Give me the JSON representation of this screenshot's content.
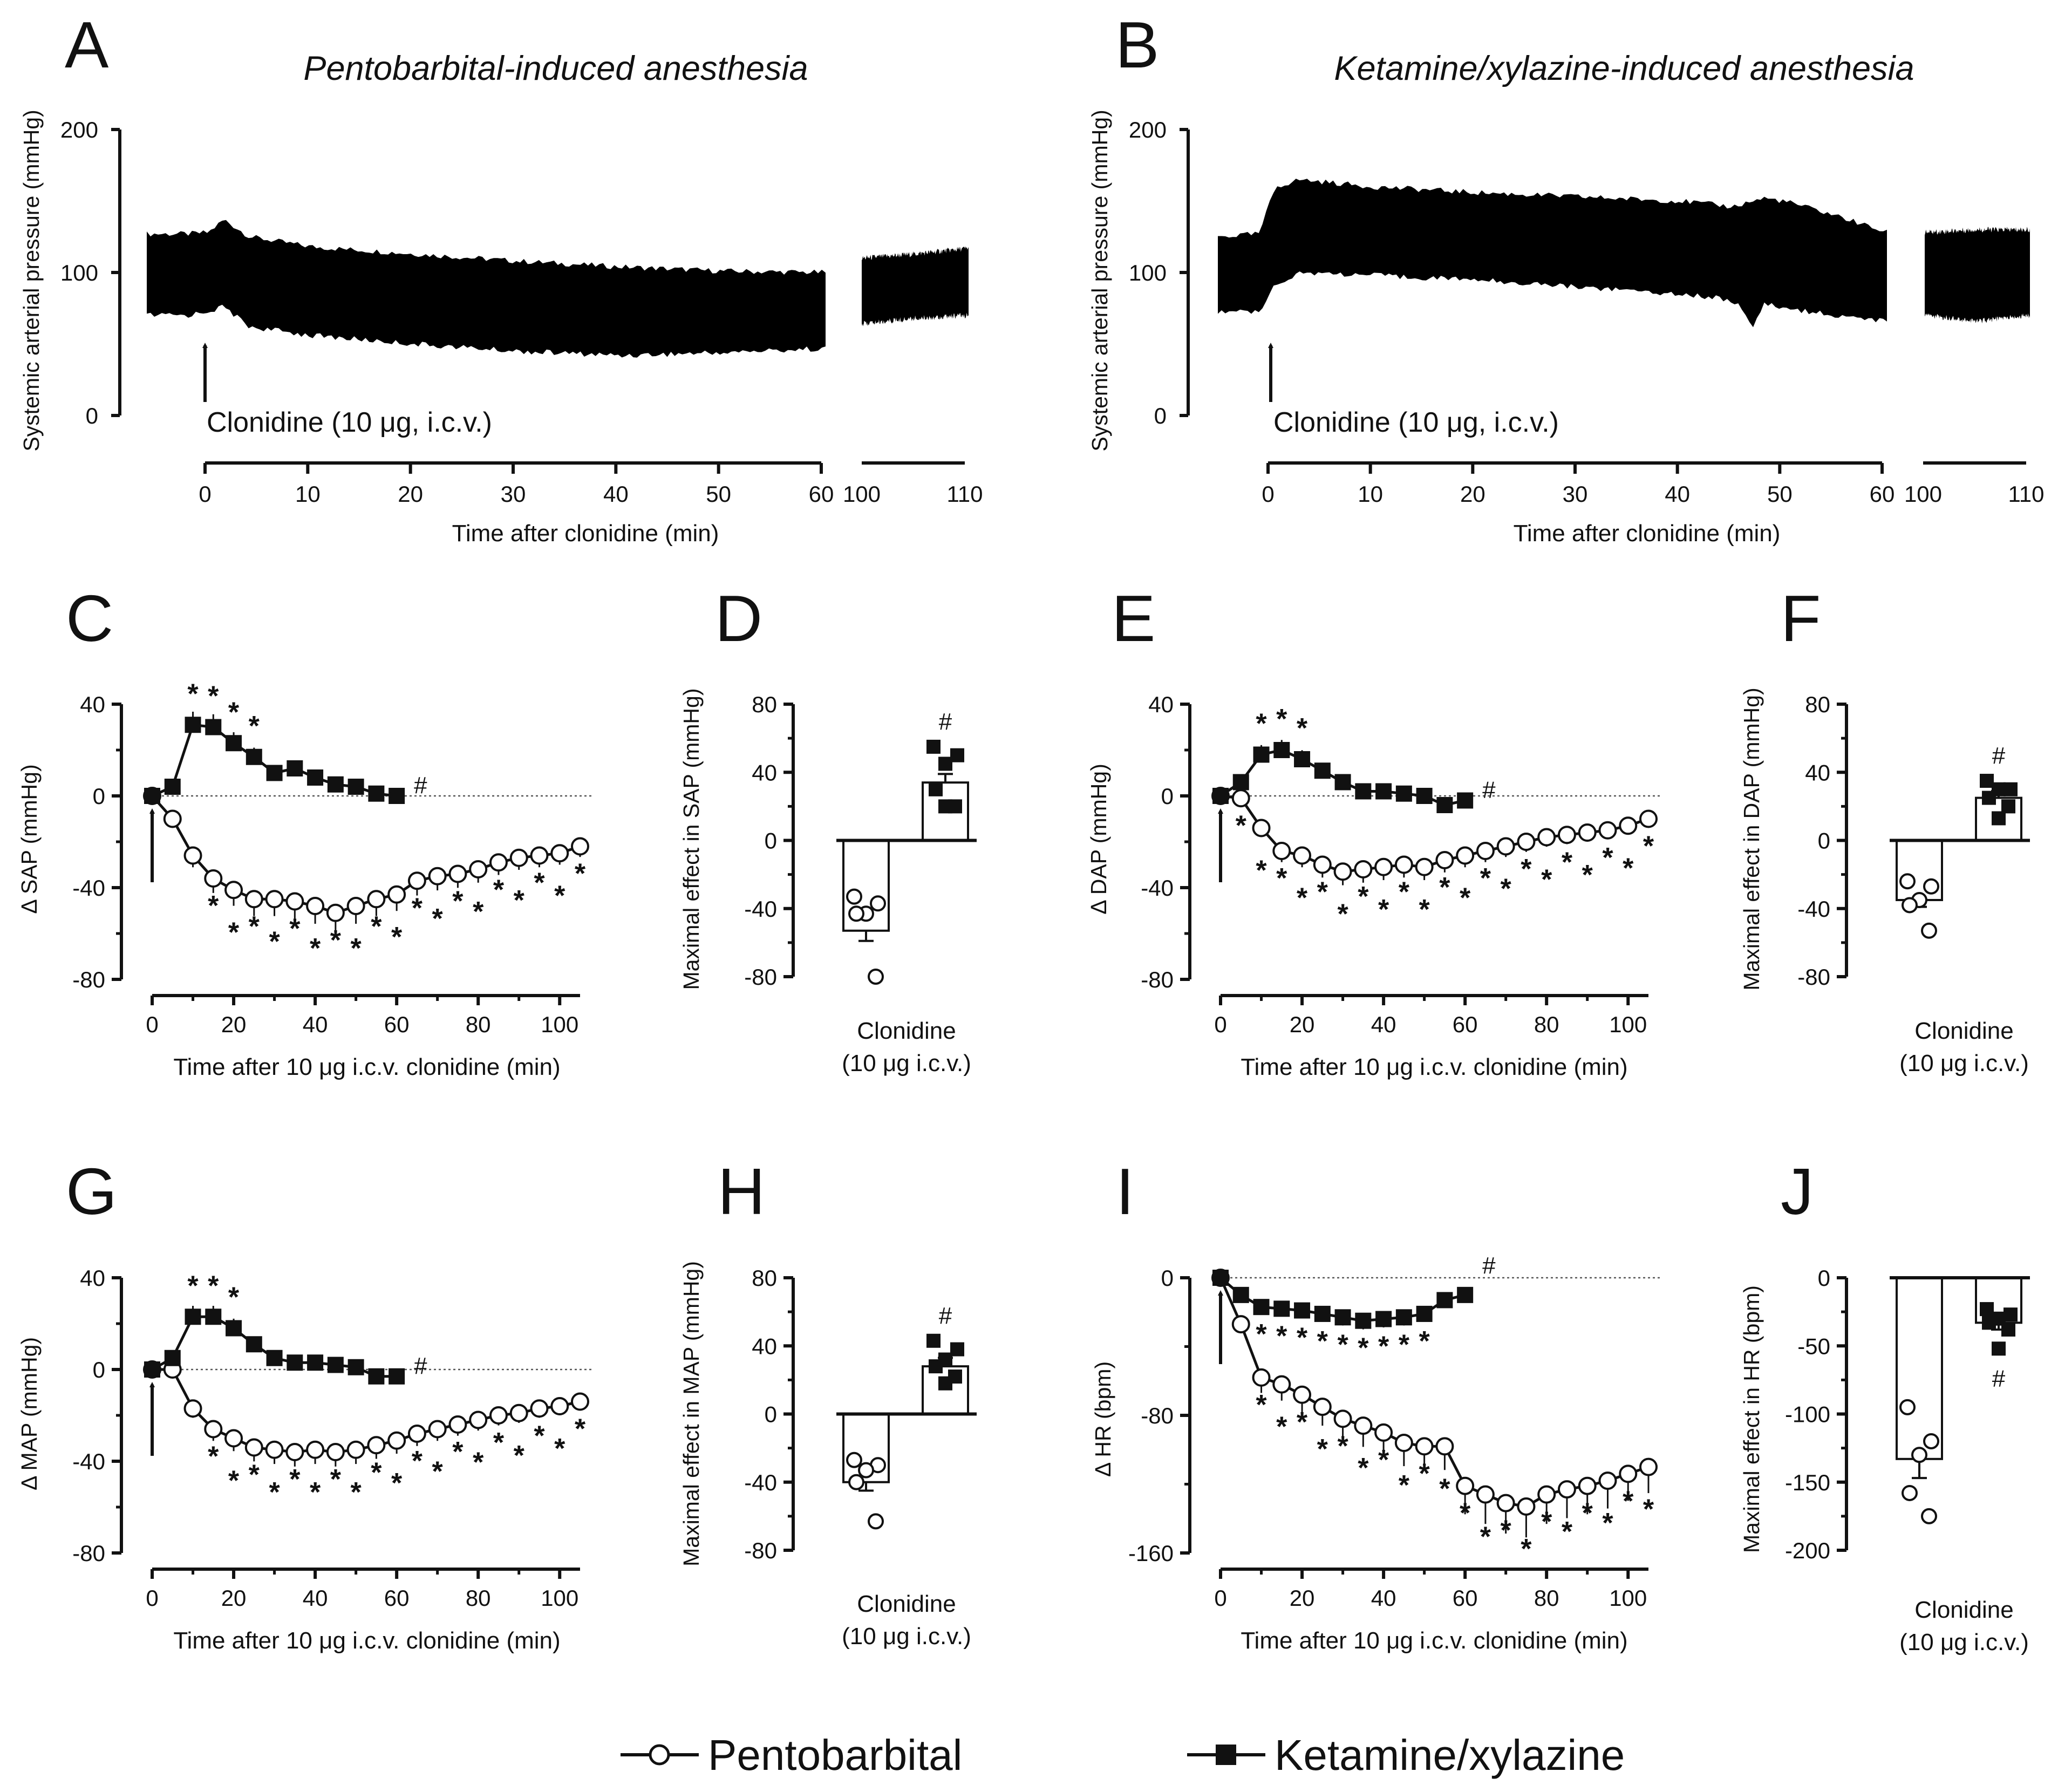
{
  "chart_data": [
    {
      "id": "A",
      "type": "line",
      "panel_letter": "A",
      "title": "Pentobarbital-induced anesthesia",
      "ylabel": "Systemic arterial pressure (mmHg)",
      "xlabel": "Time after clonidine (min)",
      "ylim": [
        0,
        200
      ],
      "yticks": [
        "200",
        "100",
        "0"
      ],
      "xticks": [
        "0",
        "10",
        "20",
        "30",
        "40",
        "50",
        "60"
      ],
      "xticks_break": [
        "100",
        "110"
      ],
      "annotation": "Clonidine (10 μg, i.c.v.)",
      "trace": {
        "systolic": [
          [
            -6,
            127
          ],
          [
            -2,
            127
          ],
          [
            0,
            128
          ],
          [
            1.5,
            137
          ],
          [
            4,
            125
          ],
          [
            10,
            118
          ],
          [
            20,
            113
          ],
          [
            30,
            108
          ],
          [
            40,
            104
          ],
          [
            50,
            101
          ],
          [
            60,
            100
          ]
        ],
        "diastolic": [
          [
            -6,
            70
          ],
          [
            -2,
            70
          ],
          [
            0,
            73
          ],
          [
            1.5,
            76
          ],
          [
            4,
            62
          ],
          [
            10,
            56
          ],
          [
            20,
            50
          ],
          [
            30,
            45
          ],
          [
            40,
            42
          ],
          [
            50,
            44
          ],
          [
            60,
            47
          ]
        ],
        "systolic_late": [
          [
            100,
            110
          ],
          [
            105,
            113
          ],
          [
            110,
            117
          ]
        ],
        "diastolic_late": [
          [
            100,
            64
          ],
          [
            105,
            68
          ],
          [
            110,
            70
          ]
        ]
      }
    },
    {
      "id": "B",
      "type": "line",
      "panel_letter": "B",
      "title": "Ketamine/xylazine-induced anesthesia",
      "ylabel": "Systemic arterial pressure (mmHg)",
      "xlabel": "Time after clonidine (min)",
      "ylim": [
        0,
        200
      ],
      "yticks": [
        "200",
        "100",
        "0"
      ],
      "xticks": [
        "0",
        "10",
        "20",
        "30",
        "40",
        "50",
        "60"
      ],
      "xticks_break": [
        "100",
        "110"
      ],
      "annotation": "Clonidine (10 μg, i.c.v.)",
      "trace": {
        "systolic": [
          [
            -5,
            125
          ],
          [
            -1,
            127
          ],
          [
            0.6,
            160
          ],
          [
            3,
            165
          ],
          [
            10,
            160
          ],
          [
            20,
            156
          ],
          [
            30,
            153
          ],
          [
            40,
            150
          ],
          [
            45,
            146
          ],
          [
            48,
            152
          ],
          [
            50,
            150
          ],
          [
            55,
            140
          ],
          [
            60,
            128
          ]
        ],
        "diastolic": [
          [
            -5,
            72
          ],
          [
            -1,
            73
          ],
          [
            0.6,
            92
          ],
          [
            3,
            100
          ],
          [
            10,
            98
          ],
          [
            20,
            95
          ],
          [
            30,
            90
          ],
          [
            40,
            85
          ],
          [
            44,
            82
          ],
          [
            46,
            75
          ],
          [
            47,
            62
          ],
          [
            48,
            78
          ],
          [
            50,
            75
          ],
          [
            55,
            70
          ],
          [
            60,
            66
          ]
        ],
        "systolic_late": [
          [
            100,
            128
          ],
          [
            105,
            130
          ],
          [
            110,
            130
          ]
        ],
        "diastolic_late": [
          [
            100,
            70
          ],
          [
            105,
            66
          ],
          [
            110,
            70
          ]
        ]
      }
    },
    {
      "id": "C",
      "type": "line",
      "panel_letter": "C",
      "ylabel": "Δ SAP (mmHg)",
      "xlabel": "Time after 10 μg i.c.v. clonidine (min)",
      "ylim": [
        -80,
        40
      ],
      "yticks": [
        "40",
        "0",
        "-40",
        "-80"
      ],
      "xticks": [
        "0",
        "20",
        "40",
        "60",
        "80",
        "100"
      ],
      "series": [
        {
          "name": "Pentobarbital",
          "x": [
            0,
            5,
            10,
            15,
            20,
            25,
            30,
            35,
            40,
            45,
            50,
            55,
            60,
            65,
            70,
            75,
            80,
            85,
            90,
            95,
            100,
            105
          ],
          "y": [
            0,
            -10,
            -26,
            -36,
            -41,
            -45,
            -45,
            -46,
            -48,
            -51,
            -48,
            -45,
            -43,
            -37,
            -35,
            -34,
            -32,
            -29,
            -27,
            -26,
            -25,
            -22
          ]
        },
        {
          "name": "Ketamine/xylazine",
          "x": [
            0,
            5,
            10,
            15,
            20,
            25,
            30,
            35,
            40,
            45,
            50,
            55,
            60
          ],
          "y": [
            0,
            4,
            31,
            30,
            23,
            17,
            10,
            12,
            8,
            5,
            4,
            1,
            0
          ]
        }
      ],
      "stars": [
        "*",
        "*",
        "*",
        "*",
        "*",
        "*",
        "*",
        "*",
        "*",
        "*",
        "*",
        "*",
        "*",
        "*",
        "*",
        "*",
        "*",
        "*",
        "*",
        "*",
        "*",
        "*",
        "*",
        "*",
        "*",
        "*",
        "*",
        "*",
        "*"
      ],
      "hash": "#"
    },
    {
      "id": "D",
      "type": "bar",
      "panel_letter": "D",
      "ylabel": "Maximal effect in SAP (mmHg)",
      "xlabel_lines": [
        "Clonidine",
        "(10 μg i.c.v.)"
      ],
      "ylim": [
        -80,
        80
      ],
      "yticks": [
        "80",
        "40",
        "0",
        "-40",
        "-80"
      ],
      "series": [
        {
          "name": "Pentobarbital",
          "value": -53,
          "sem": 6,
          "points": [
            -33,
            -37,
            -43,
            -43,
            -80
          ]
        },
        {
          "name": "Ketamine/xylazine",
          "value": 34,
          "sem": 5,
          "points": [
            55,
            50,
            45,
            30,
            20,
            20
          ]
        }
      ],
      "hash": "#"
    },
    {
      "id": "E",
      "type": "line",
      "panel_letter": "E",
      "ylabel": "Δ DAP (mmHg)",
      "xlabel": "Time after 10 μg i.c.v. clonidine (min)",
      "ylim": [
        -80,
        40
      ],
      "yticks": [
        "40",
        "0",
        "-40",
        "-80"
      ],
      "xticks": [
        "0",
        "20",
        "40",
        "60",
        "80",
        "100"
      ],
      "series": [
        {
          "name": "Pentobarbital",
          "x": [
            0,
            5,
            10,
            15,
            20,
            25,
            30,
            35,
            40,
            45,
            50,
            55,
            60,
            65,
            70,
            75,
            80,
            85,
            90,
            95,
            100,
            105
          ],
          "y": [
            0,
            -1,
            -14,
            -24,
            -26,
            -30,
            -33,
            -32,
            -31,
            -30,
            -31,
            -28,
            -26,
            -24,
            -22,
            -20,
            -18,
            -17,
            -16,
            -15,
            -13,
            -10
          ]
        },
        {
          "name": "Ketamine/xylazine",
          "x": [
            0,
            5,
            10,
            15,
            20,
            25,
            30,
            35,
            40,
            45,
            50,
            55,
            60
          ],
          "y": [
            0,
            6,
            18,
            20,
            16,
            11,
            6,
            2,
            2,
            1,
            0,
            -4,
            -2
          ]
        }
      ],
      "stars": [
        "*",
        "*",
        "*",
        "*",
        "*",
        "*",
        "*",
        "*",
        "*",
        "*",
        "*",
        "*",
        "*",
        "*",
        "*",
        "*",
        "*",
        "*",
        "*",
        "*",
        "*",
        "*",
        "*",
        "*",
        "*",
        "*",
        "*"
      ],
      "hash": "#"
    },
    {
      "id": "F",
      "type": "bar",
      "panel_letter": "F",
      "ylabel": "Maximal effect in DAP (mmHg)",
      "xlabel_lines": [
        "Clonidine",
        "(10 μg i.c.v.)"
      ],
      "ylim": [
        -80,
        80
      ],
      "yticks": [
        "80",
        "40",
        "0",
        "-40",
        "-80"
      ],
      "series": [
        {
          "name": "Pentobarbital",
          "value": -35,
          "sem": 4,
          "points": [
            -24,
            -27,
            -35,
            -38,
            -53
          ]
        },
        {
          "name": "Ketamine/xylazine",
          "value": 25,
          "sem": 4,
          "points": [
            35,
            30,
            30,
            25,
            20,
            13
          ]
        }
      ],
      "hash": "#"
    },
    {
      "id": "G",
      "type": "line",
      "panel_letter": "G",
      "ylabel": "Δ MAP (mmHg)",
      "xlabel": "Time after 10 μg i.c.v. clonidine (min)",
      "ylim": [
        -80,
        40
      ],
      "yticks": [
        "40",
        "0",
        "-40",
        "-80"
      ],
      "xticks": [
        "0",
        "20",
        "40",
        "60",
        "80",
        "100"
      ],
      "series": [
        {
          "name": "Pentobarbital",
          "x": [
            0,
            5,
            10,
            15,
            20,
            25,
            30,
            35,
            40,
            45,
            50,
            55,
            60,
            65,
            70,
            75,
            80,
            85,
            90,
            95,
            100,
            105
          ],
          "y": [
            0,
            0,
            -17,
            -26,
            -30,
            -34,
            -35,
            -36,
            -35,
            -36,
            -35,
            -33,
            -31,
            -28,
            -26,
            -24,
            -22,
            -20,
            -19,
            -17,
            -16,
            -14
          ]
        },
        {
          "name": "Ketamine/xylazine",
          "x": [
            0,
            5,
            10,
            15,
            20,
            25,
            30,
            35,
            40,
            45,
            50,
            55,
            60
          ],
          "y": [
            0,
            5,
            23,
            23,
            18,
            11,
            5,
            3,
            3,
            2,
            1,
            -3,
            -3
          ]
        }
      ],
      "stars": [
        "*",
        "*",
        "*",
        "*",
        "*",
        "*",
        "*",
        "*",
        "*",
        "*",
        "*",
        "*",
        "*",
        "*",
        "*",
        "*",
        "*",
        "*",
        "*",
        "*",
        "*",
        "*",
        "*",
        "*",
        "*",
        "*",
        "*",
        "*"
      ],
      "hash": "#"
    },
    {
      "id": "H",
      "type": "bar",
      "panel_letter": "H",
      "ylabel": "Maximal effect in MAP (mmHg)",
      "xlabel_lines": [
        "Clonidine",
        "(10 μg i.c.v.)"
      ],
      "ylim": [
        -80,
        80
      ],
      "yticks": [
        "80",
        "40",
        "0",
        "-40",
        "-80"
      ],
      "series": [
        {
          "name": "Pentobarbital",
          "value": -40,
          "sem": 5,
          "points": [
            -27,
            -30,
            -33,
            -40,
            -63
          ]
        },
        {
          "name": "Ketamine/xylazine",
          "value": 28,
          "sem": 5,
          "points": [
            43,
            38,
            32,
            28,
            22,
            18
          ]
        }
      ],
      "hash": "#"
    },
    {
      "id": "I",
      "type": "line",
      "panel_letter": "I",
      "ylabel": "Δ HR (bpm)",
      "xlabel": "Time after 10 μg i.c.v. clonidine (min)",
      "ylim": [
        -160,
        0
      ],
      "yticks": [
        "0",
        "-80",
        "-160"
      ],
      "xticks": [
        "0",
        "20",
        "40",
        "60",
        "80",
        "100"
      ],
      "series": [
        {
          "name": "Pentobarbital",
          "x": [
            0,
            5,
            10,
            15,
            20,
            25,
            30,
            35,
            40,
            45,
            50,
            55,
            60,
            65,
            70,
            75,
            80,
            85,
            90,
            95,
            100,
            105
          ],
          "y": [
            0,
            -27,
            -58,
            -62,
            -68,
            -75,
            -82,
            -86,
            -90,
            -96,
            -98,
            -98,
            -121,
            -126,
            -131,
            -133,
            -126,
            -123,
            -121,
            -118,
            -114,
            -110
          ]
        },
        {
          "name": "Ketamine/xylazine",
          "x": [
            0,
            5,
            10,
            15,
            20,
            25,
            30,
            35,
            40,
            45,
            50,
            55,
            60
          ],
          "y": [
            0,
            -10,
            -17,
            -18,
            -19,
            -21,
            -23,
            -25,
            -24,
            -23,
            -21,
            -13,
            -10
          ]
        }
      ],
      "stars": [
        "*",
        "*",
        "*",
        "*",
        "*",
        "*",
        "*",
        "*",
        "*",
        "*",
        "*",
        "*",
        "*",
        "*",
        "*",
        "*",
        "*",
        "*",
        "*",
        "*",
        "*",
        "*",
        "*",
        "*",
        "*",
        "*",
        "*",
        "*",
        "*",
        "*",
        "*",
        "*",
        "*",
        "*",
        "*"
      ],
      "hash": "#"
    },
    {
      "id": "J",
      "type": "bar",
      "panel_letter": "J",
      "ylabel": "Maximal effect in HR (bpm)",
      "xlabel_lines": [
        "Clonidine",
        "(10 μg i.c.v.)"
      ],
      "ylim": [
        -200,
        0
      ],
      "yticks": [
        "0",
        "-50",
        "-100",
        "-150",
        "-200"
      ],
      "series": [
        {
          "name": "Pentobarbital",
          "value": -133,
          "sem": 14,
          "points": [
            -95,
            -120,
            -130,
            -158,
            -175
          ]
        },
        {
          "name": "Ketamine/xylazine",
          "value": -33,
          "sem": 5,
          "points": [
            -23,
            -27,
            -30,
            -33,
            -38,
            -52
          ]
        }
      ],
      "hash": "#"
    }
  ],
  "legend": {
    "pentobarbital": "Pentobarbital",
    "ketamine": "Ketamine/xylazine",
    "placement": "bottom-center"
  }
}
